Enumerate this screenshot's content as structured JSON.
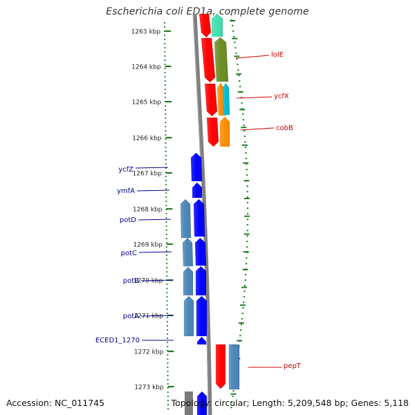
{
  "title": "Escherichia coli ED1a, complete genome",
  "footer": {
    "accession": "Accession: NC_011745",
    "topology": "Topology: circular; Length: 5,209,548 bp; Genes: 5,118"
  },
  "colors": {
    "ruler_dot": "#2a8a2a",
    "ruler_tick": "#1e7b1e",
    "backbone": "#808080",
    "label_right": "#cc0000",
    "label_left": "#00008b",
    "red_gene": "#ff0000",
    "blue_gene": "#0000ff",
    "steelblue_gene": "#4a86b8",
    "olive_gene": "#6b8e23",
    "aqua_gene": "#40e0b0",
    "orange_gene": "#ff8c00",
    "cyan_gene": "#00bcd4"
  },
  "ruler": {
    "ticks": [
      "1263 kbp",
      "1264 kbp",
      "1265 kbp",
      "1266 kbp",
      "1267 kbp",
      "1268 kbp",
      "1269 kbp",
      "1270 kbp",
      "1271 kbp",
      "1272 kbp",
      "1273 kbp"
    ]
  },
  "gene_labels": [
    {
      "name": "lolE",
      "side": "right"
    },
    {
      "name": "ycfX",
      "side": "right"
    },
    {
      "name": "cobB",
      "side": "right"
    },
    {
      "name": "ycfZ",
      "side": "left"
    },
    {
      "name": "ymfA",
      "side": "left"
    },
    {
      "name": "potD",
      "side": "left"
    },
    {
      "name": "potC",
      "side": "left"
    },
    {
      "name": "potB",
      "side": "left"
    },
    {
      "name": "potA",
      "side": "left"
    },
    {
      "name": "ECED1_1270",
      "side": "left"
    },
    {
      "name": "pepT",
      "side": "right"
    }
  ],
  "genes": [
    {
      "color": "red_gene",
      "strand": "minus"
    },
    {
      "color": "aqua_gene",
      "strand": "plus"
    },
    {
      "color": "red_gene",
      "strand": "minus"
    },
    {
      "color": "olive_gene",
      "strand": "plus"
    },
    {
      "color": "red_gene",
      "strand": "minus"
    },
    {
      "color": "orange_gene",
      "strand": "plus"
    },
    {
      "color": "cyan_gene",
      "strand": "plus"
    },
    {
      "color": "red_gene",
      "strand": "minus"
    },
    {
      "color": "orange_gene",
      "strand": "plus"
    },
    {
      "color": "blue_gene",
      "strand": "plus"
    },
    {
      "color": "blue_gene",
      "strand": "plus"
    },
    {
      "color": "steelblue_gene",
      "strand": "plus"
    },
    {
      "color": "blue_gene",
      "strand": "plus"
    },
    {
      "color": "steelblue_gene",
      "strand": "plus"
    },
    {
      "color": "blue_gene",
      "strand": "plus"
    },
    {
      "color": "steelblue_gene",
      "strand": "plus"
    },
    {
      "color": "blue_gene",
      "strand": "plus"
    },
    {
      "color": "steelblue_gene",
      "strand": "plus"
    },
    {
      "color": "blue_gene",
      "strand": "plus"
    },
    {
      "color": "blue_gene",
      "strand": "plus"
    },
    {
      "color": "red_gene",
      "strand": "minus"
    },
    {
      "color": "steelblue_gene",
      "strand": "minus"
    },
    {
      "color": "steelblue_gene",
      "strand": "plus"
    },
    {
      "color": "blue_gene",
      "strand": "plus"
    }
  ]
}
